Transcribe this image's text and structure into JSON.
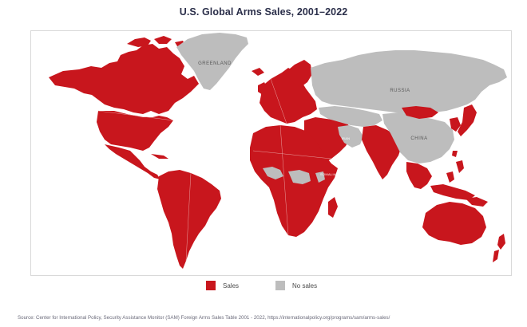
{
  "title": "U.S. Global Arms Sales, 2001–2022",
  "colors": {
    "sales": "#c8161d",
    "no_sales": "#bdbdbd",
    "border": "#e8a0a0"
  },
  "map_labels": {
    "greenland": "GREENLAND",
    "russia": "RUSSIA",
    "china": "CHINA",
    "iran": "IRAN",
    "somalia": "SOMALIA"
  },
  "legend": {
    "sales_label": "Sales",
    "no_sales_label": "No sales"
  },
  "source": "Source: Center for International Policy, Security Assistance Monitor (SAM) Foreign Arms Sales Table 2001 - 2022, https://internationalpolicy.org/programs/sam/arms-sales/"
}
